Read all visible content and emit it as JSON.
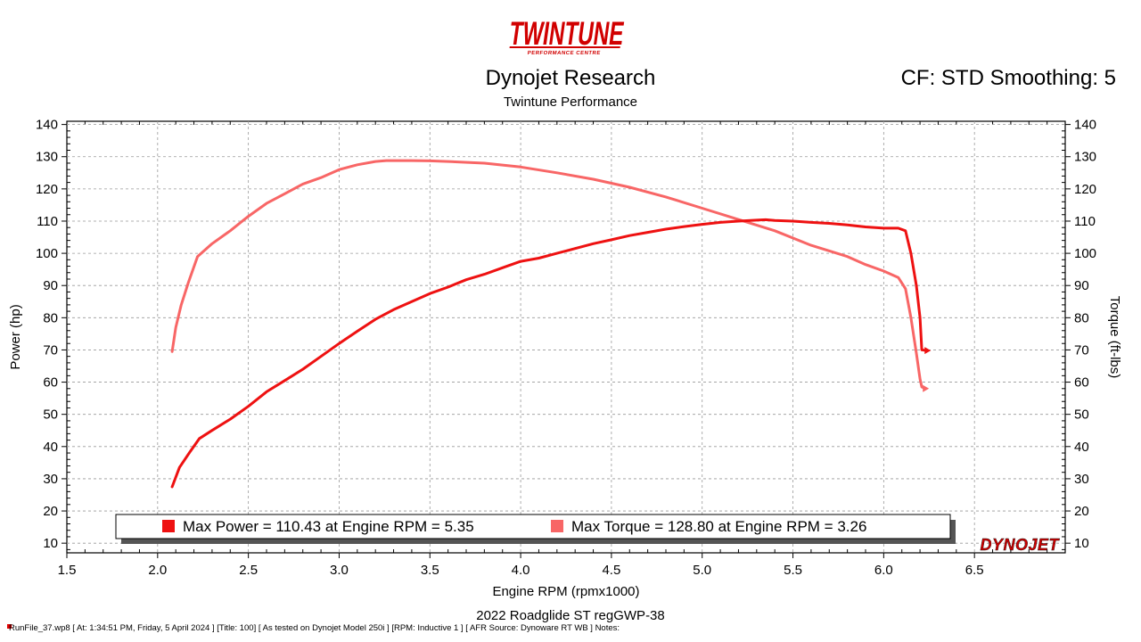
{
  "header": {
    "logo_text": "TWINTUNE",
    "logo_subtext": "PERFORMANCE CENTRE",
    "title": "Dynojet Research",
    "subtitle": "Twintune Performance",
    "cf_label": "CF: STD Smoothing: 5"
  },
  "footer": {
    "run_title": "2022 Roadglide ST regGWP-38",
    "info": "RunFile_37.wp8 [ At: 1:34:51 PM, Friday, 5 April 2024 ] [Title: 100] [ As tested on Dynojet Model 250i ] [RPM: Inductive 1 ] [ AFR Source: Dynoware RT WB ] Notes:"
  },
  "colors": {
    "power": "#ee1111",
    "torque": "#f86666",
    "grid": "#999999",
    "logo": "#d10000"
  },
  "chart_data": {
    "type": "line",
    "xlabel": "Engine RPM (rpmx1000)",
    "ylabel": "Power (hp)",
    "y2label": "Torque (ft-lbs)",
    "xlim": [
      1.5,
      7.0
    ],
    "ylim": [
      7,
      141
    ],
    "y2lim": [
      7,
      141
    ],
    "xticks": [
      1.5,
      2.0,
      2.5,
      3.0,
      3.5,
      4.0,
      4.5,
      5.0,
      5.5,
      6.0,
      6.5
    ],
    "yticks": [
      10,
      20,
      30,
      40,
      50,
      60,
      70,
      80,
      90,
      100,
      110,
      120,
      130,
      140
    ],
    "grid": true,
    "legend_position": "bottom",
    "legend": [
      {
        "series": "power",
        "text": "Max Power = 110.43 at Engine RPM = 5.35"
      },
      {
        "series": "torque",
        "text": "Max Torque = 128.80 at Engine RPM = 3.26"
      }
    ],
    "brand_mark": "DYNOJET",
    "series": [
      {
        "id": "power",
        "axis": "left",
        "points": [
          [
            2.08,
            27.5
          ],
          [
            2.12,
            33.5
          ],
          [
            2.18,
            38.5
          ],
          [
            2.23,
            42.5
          ],
          [
            2.3,
            45
          ],
          [
            2.4,
            48.5
          ],
          [
            2.5,
            52.5
          ],
          [
            2.6,
            57
          ],
          [
            2.7,
            60.5
          ],
          [
            2.8,
            64
          ],
          [
            2.9,
            68
          ],
          [
            3.0,
            72
          ],
          [
            3.1,
            75.8
          ],
          [
            3.2,
            79.5
          ],
          [
            3.3,
            82.5
          ],
          [
            3.4,
            85
          ],
          [
            3.5,
            87.5
          ],
          [
            3.6,
            89.5
          ],
          [
            3.7,
            91.8
          ],
          [
            3.8,
            93.5
          ],
          [
            3.9,
            95.5
          ],
          [
            4.0,
            97.5
          ],
          [
            4.1,
            98.5
          ],
          [
            4.2,
            100
          ],
          [
            4.3,
            101.5
          ],
          [
            4.4,
            103
          ],
          [
            4.5,
            104.2
          ],
          [
            4.6,
            105.5
          ],
          [
            4.7,
            106.5
          ],
          [
            4.8,
            107.5
          ],
          [
            4.9,
            108.3
          ],
          [
            5.0,
            109
          ],
          [
            5.1,
            109.6
          ],
          [
            5.2,
            110
          ],
          [
            5.3,
            110.3
          ],
          [
            5.35,
            110.43
          ],
          [
            5.4,
            110.2
          ],
          [
            5.5,
            110
          ],
          [
            5.6,
            109.6
          ],
          [
            5.7,
            109.3
          ],
          [
            5.8,
            108.8
          ],
          [
            5.9,
            108.2
          ],
          [
            6.0,
            107.8
          ],
          [
            6.08,
            107.8
          ],
          [
            6.12,
            107
          ],
          [
            6.15,
            100
          ],
          [
            6.18,
            90
          ],
          [
            6.2,
            80
          ],
          [
            6.21,
            70
          ],
          [
            6.24,
            69.8
          ]
        ]
      },
      {
        "id": "torque",
        "axis": "right",
        "points": [
          [
            2.08,
            69.5
          ],
          [
            2.1,
            77
          ],
          [
            2.13,
            84
          ],
          [
            2.17,
            91
          ],
          [
            2.22,
            99
          ],
          [
            2.3,
            103
          ],
          [
            2.4,
            107
          ],
          [
            2.5,
            111.5
          ],
          [
            2.6,
            115.5
          ],
          [
            2.7,
            118.5
          ],
          [
            2.8,
            121.5
          ],
          [
            2.9,
            123.5
          ],
          [
            3.0,
            126
          ],
          [
            3.1,
            127.5
          ],
          [
            3.2,
            128.5
          ],
          [
            3.26,
            128.8
          ],
          [
            3.4,
            128.8
          ],
          [
            3.5,
            128.7
          ],
          [
            3.6,
            128.5
          ],
          [
            3.8,
            128
          ],
          [
            4.0,
            126.8
          ],
          [
            4.2,
            125
          ],
          [
            4.4,
            123
          ],
          [
            4.6,
            120.5
          ],
          [
            4.8,
            117.5
          ],
          [
            5.0,
            114
          ],
          [
            5.2,
            110.5
          ],
          [
            5.4,
            107
          ],
          [
            5.6,
            102.5
          ],
          [
            5.8,
            99
          ],
          [
            5.9,
            96.5
          ],
          [
            6.0,
            94.5
          ],
          [
            6.08,
            92.5
          ],
          [
            6.12,
            89
          ],
          [
            6.15,
            80
          ],
          [
            6.18,
            69
          ],
          [
            6.2,
            61
          ],
          [
            6.21,
            58.5
          ],
          [
            6.23,
            58
          ]
        ]
      }
    ]
  }
}
